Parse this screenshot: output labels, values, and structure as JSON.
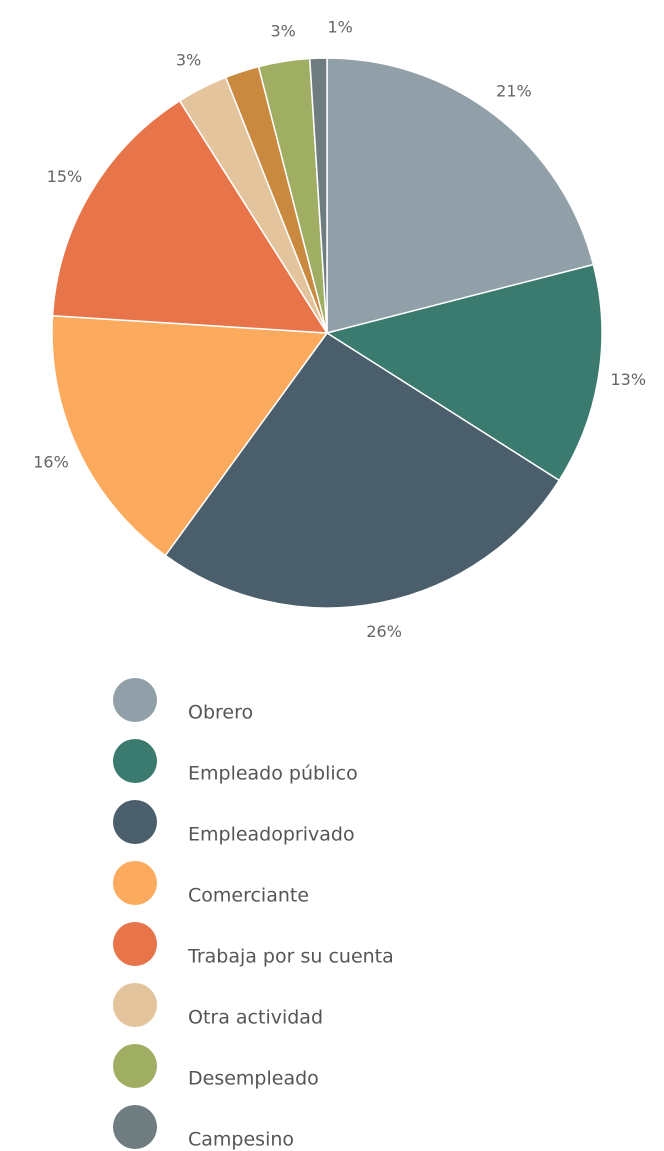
{
  "chart_data": {
    "type": "pie",
    "categories": [
      "Obrero",
      "Empleado público",
      "Empleadoprivado",
      "Comerciante",
      "Trabaja por su cuenta",
      "Otra actividad",
      null,
      "Desempleado",
      "Campesino"
    ],
    "values": [
      21,
      13,
      26,
      16,
      15,
      3,
      2,
      3,
      1
    ],
    "value_labels": [
      "21%",
      "13%",
      "26%",
      "16%",
      "15%",
      "3%",
      null,
      "3%",
      "1%"
    ],
    "colors": [
      "#919fa8",
      "#3b7a6e",
      "#4a5e6b",
      "#fbaa5e",
      "#e8744a",
      "#e4c49c",
      "#c98a40",
      "#9fae63",
      "#6f7d80"
    ],
    "legend": true
  }
}
